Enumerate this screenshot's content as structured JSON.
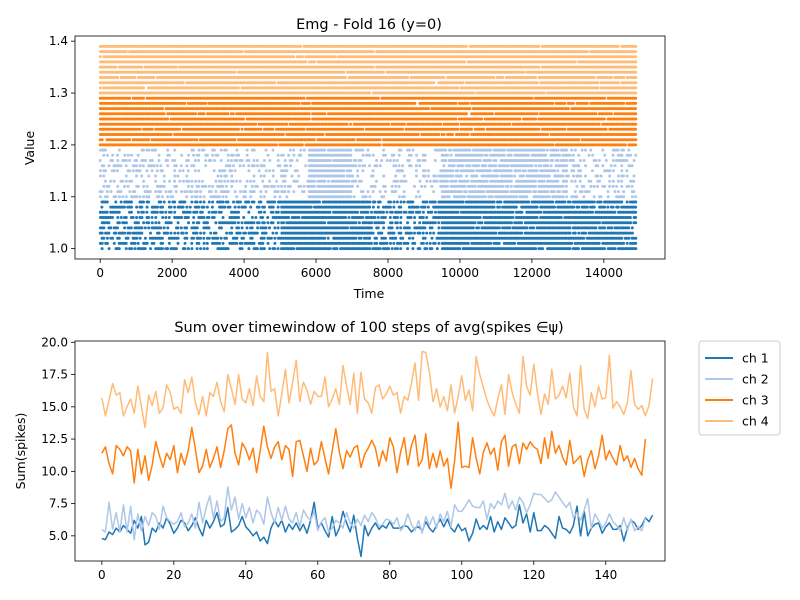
{
  "chart_data": [
    {
      "type": "scatter",
      "title": "Emg - Fold 16 (y=0)",
      "xlabel": "Time",
      "ylabel": "Value",
      "xlim": [
        -700,
        15700
      ],
      "ylim": [
        0.98,
        1.41
      ],
      "x_ticks": [
        0,
        2000,
        4000,
        6000,
        8000,
        10000,
        12000,
        14000
      ],
      "x_tick_labels": [
        "0",
        "2000",
        "4000",
        "6000",
        "8000",
        "10000",
        "12000",
        "14000"
      ],
      "y_ticks": [
        1.0,
        1.1,
        1.2,
        1.3,
        1.4
      ],
      "y_tick_labels": [
        "1.0",
        "1.1",
        "1.2",
        "1.3",
        "1.4"
      ],
      "x_range": [
        0,
        14900
      ],
      "bands": [
        {
          "color": "#1f77b4",
          "y_values": [
            1.0,
            1.01,
            1.02,
            1.03,
            1.04,
            1.05,
            1.06,
            1.07,
            1.08,
            1.09
          ],
          "density_segments": [
            [
              0,
              5000,
              0.55
            ],
            [
              5000,
              7500,
              0.95
            ],
            [
              7500,
              9500,
              0.6
            ],
            [
              9500,
              13000,
              0.95
            ],
            [
              13000,
              15000,
              0.9
            ]
          ]
        },
        {
          "color": "#aec7e8",
          "y_values": [
            1.1,
            1.11,
            1.12,
            1.13,
            1.14,
            1.15,
            1.16,
            1.17,
            1.18,
            1.19
          ],
          "density_segments": [
            [
              0,
              5000,
              0.35
            ],
            [
              5000,
              5800,
              0.3
            ],
            [
              5800,
              7000,
              0.95
            ],
            [
              7000,
              9500,
              0.3
            ],
            [
              9500,
              13000,
              0.85
            ],
            [
              13000,
              15000,
              0.4
            ]
          ]
        },
        {
          "color": "#ff7f0e",
          "y_values": [
            1.2,
            1.21,
            1.22,
            1.23,
            1.24,
            1.25,
            1.26,
            1.27,
            1.28,
            1.29
          ],
          "density_segments": [
            [
              0,
              15000,
              0.97
            ]
          ]
        },
        {
          "color": "#ffbb78",
          "y_values": [
            1.3,
            1.31,
            1.32,
            1.33,
            1.34,
            1.35,
            1.36,
            1.37,
            1.38,
            1.39
          ],
          "density_segments": [
            [
              0,
              15000,
              0.98
            ]
          ]
        }
      ]
    },
    {
      "type": "line",
      "title": "Sum over timewindow of 100 steps of avg(spikes $\\in\\psi$)",
      "title_display": "Sum over timewindow of 100 steps of avg(spikes ∈ψ)",
      "xlabel": "",
      "ylabel": "Sum(spikes)",
      "xlim": [
        -7.45,
        156.45
      ],
      "ylim": [
        3.05,
        20.1
      ],
      "x_ticks": [
        0,
        20,
        40,
        60,
        80,
        100,
        120,
        140
      ],
      "x_tick_labels": [
        "0",
        "20",
        "40",
        "60",
        "80",
        "100",
        "120",
        "140"
      ],
      "y_ticks": [
        5.0,
        7.5,
        10.0,
        12.5,
        15.0,
        17.5,
        20.0
      ],
      "y_tick_labels": [
        "5.0",
        "7.5",
        "10.0",
        "12.5",
        "15.0",
        "17.5",
        "20.0"
      ],
      "legend_position": "outside-right-top",
      "series": [
        {
          "name": "ch 1",
          "color": "#1f77b4",
          "values": [
            4.8,
            4.7,
            5.3,
            5.1,
            5.6,
            5.3,
            5.8,
            5.5,
            5.2,
            6.2,
            5.6,
            6.5,
            4.3,
            4.5,
            5.6,
            5.3,
            6.0,
            5.6,
            6.4,
            5.9,
            5.2,
            5.6,
            6.2,
            6.0,
            5.4,
            5.8,
            6.4,
            5.6,
            5.0,
            6.2,
            5.6,
            6.1,
            6.8,
            5.7,
            5.9,
            7.2,
            5.3,
            5.5,
            5.8,
            6.5,
            5.7,
            5.4,
            5.0,
            5.3,
            4.6,
            4.9,
            4.4,
            5.6,
            6.2,
            5.7,
            6.2,
            5.3,
            5.9,
            5.5,
            6.0,
            5.4,
            5.9,
            5.2,
            6.2,
            7.6,
            5.6,
            6.0,
            5.4,
            4.9,
            6.5,
            5.0,
            5.6,
            6.9,
            6.0,
            5.3,
            6.6,
            4.8,
            3.4,
            5.8,
            5.0,
            5.6,
            6.0,
            5.5,
            5.8,
            5.6,
            6.1,
            5.6,
            5.6,
            5.6,
            5.8,
            5.7,
            5.3,
            5.6,
            5.7,
            5.4,
            6.1,
            5.6,
            5.3,
            5.8,
            6.3,
            5.7,
            6.3,
            5.6,
            5.3,
            5.9,
            5.4,
            5.6,
            4.6,
            5.2,
            6.3,
            5.5,
            5.8,
            5.5,
            6.5,
            5.3,
            6.1,
            5.5,
            6.4,
            6.0,
            5.6,
            5.8,
            7.4,
            6.0,
            6.7,
            5.3,
            6.8,
            5.4,
            5.4,
            5.8,
            5.6,
            5.2,
            4.8,
            6.5,
            5.6,
            5.5,
            5.2,
            5.8,
            7.3,
            5.0,
            6.9,
            5.0,
            5.6,
            5.9,
            6.0,
            5.2,
            5.7,
            6.0,
            5.5,
            5.5,
            5.8,
            4.6,
            5.6,
            6.2,
            6.0,
            5.5,
            5.8,
            6.4,
            6.1,
            6.6
          ]
        },
        {
          "name": "ch 2",
          "color": "#aec7e8",
          "values": [
            5.5,
            5.3,
            7.6,
            5.5,
            6.8,
            5.3,
            7.4,
            5.3,
            7.3,
            4.7,
            6.7,
            5.4,
            6.5,
            5.8,
            6.8,
            6.5,
            5.5,
            7.3,
            6.4,
            6.1,
            5.9,
            6.1,
            6.8,
            5.7,
            6.0,
            6.7,
            5.6,
            7.6,
            6.0,
            7.2,
            8.1,
            6.4,
            7.7,
            6.1,
            6.4,
            8.8,
            7.0,
            8.0,
            6.3,
            7.5,
            6.4,
            7.2,
            6.0,
            7.0,
            6.7,
            5.9,
            8.0,
            6.8,
            6.0,
            7.2,
            6.2,
            7.3,
            6.3,
            6.0,
            6.8,
            5.7,
            7.0,
            6.5,
            6.2,
            6.9,
            5.4,
            6.1,
            6.4,
            5.3,
            5.6,
            6.2,
            6.0,
            5.6,
            6.8,
            6.0,
            5.6,
            6.3,
            5.8,
            6.6,
            6.1,
            6.8,
            6.4,
            5.7,
            5.9,
            6.3,
            6.2,
            5.9,
            6.4,
            5.4,
            5.8,
            6.7,
            5.9,
            5.4,
            6.2,
            5.2,
            6.5,
            5.8,
            6.5,
            5.6,
            6.7,
            6.1,
            6.9,
            5.7,
            7.4,
            6.9,
            6.9,
            7.3,
            7.8,
            7.3,
            7.2,
            7.2,
            7.7,
            6.3,
            7.5,
            7.1,
            7.7,
            7.4,
            8.3,
            7.1,
            7.7,
            7.0,
            8.0,
            7.6,
            6.8,
            7.4,
            8.3,
            8.2,
            8.2,
            7.9,
            7.6,
            7.8,
            8.4,
            8.0,
            7.6,
            7.2,
            7.6,
            6.4,
            6.8,
            6.2,
            7.0,
            7.9,
            5.6,
            6.7,
            6.2,
            5.6,
            6.0,
            6.7,
            6.1,
            5.8,
            5.4,
            6.4,
            5.4,
            6.3,
            5.4,
            5.7,
            5.4,
            6.4
          ]
        },
        {
          "name": "ch 3",
          "color": "#ff7f0e",
          "values": [
            11.4,
            11.9,
            10.6,
            9.8,
            12.0,
            11.7,
            11.2,
            11.9,
            11.6,
            9.1,
            11.7,
            9.8,
            11.2,
            9.3,
            10.5,
            12.3,
            11.2,
            10.3,
            11.4,
            10.9,
            12.0,
            9.9,
            11.4,
            10.5,
            11.6,
            13.4,
            11.7,
            9.9,
            10.4,
            11.7,
            10.3,
            11.0,
            11.9,
            10.3,
            11.6,
            13.3,
            13.6,
            11.4,
            10.5,
            12.2,
            11.7,
            10.9,
            11.8,
            9.9,
            11.6,
            13.5,
            11.9,
            11.0,
            11.9,
            12.3,
            10.9,
            12.0,
            11.7,
            9.6,
            12.3,
            12.4,
            11.2,
            10.0,
            11.8,
            10.5,
            10.8,
            12.3,
            11.0,
            9.8,
            11.6,
            13.3,
            11.5,
            10.2,
            11.6,
            11.1,
            11.8,
            12.0,
            10.3,
            11.3,
            11.8,
            12.4,
            11.8,
            10.4,
            11.6,
            10.8,
            12.6,
            11.9,
            9.9,
            11.5,
            12.6,
            10.5,
            12.0,
            12.8,
            10.4,
            10.9,
            12.9,
            10.2,
            11.4,
            10.3,
            11.6,
            10.4,
            11.0,
            8.7,
            10.8,
            13.8,
            10.3,
            10.4,
            10.3,
            12.6,
            11.0,
            9.8,
            11.5,
            12.2,
            11.3,
            11.8,
            10.1,
            12.3,
            12.8,
            10.4,
            11.9,
            12.1,
            10.6,
            12.2,
            11.7,
            12.3,
            11.9,
            11.7,
            10.6,
            12.6,
            11.0,
            13.1,
            11.4,
            12.0,
            11.1,
            10.5,
            12.4,
            10.6,
            10.9,
            11.2,
            9.6,
            10.9,
            11.6,
            10.2,
            11.2,
            12.8,
            10.9,
            11.6,
            11.0,
            10.5,
            12.0,
            10.8,
            11.2,
            10.3,
            11.0,
            10.2,
            9.7,
            12.5
          ]
        },
        {
          "name": "ch 4",
          "color": "#ffbb78",
          "values": [
            15.7,
            14.3,
            15.5,
            16.8,
            15.9,
            16.1,
            14.3,
            15.0,
            15.6,
            14.5,
            16.6,
            15.0,
            13.4,
            15.9,
            15.1,
            16.2,
            14.5,
            14.9,
            16.7,
            16.1,
            14.8,
            15.0,
            14.5,
            17.1,
            16.1,
            17.3,
            15.3,
            14.4,
            15.8,
            14.3,
            16.1,
            15.8,
            16.9,
            15.4,
            14.6,
            17.5,
            16.4,
            15.2,
            17.5,
            15.6,
            15.3,
            16.4,
            15.1,
            17.4,
            15.8,
            15.4,
            19.2,
            16.2,
            16.4,
            14.3,
            16.0,
            17.9,
            15.3,
            16.9,
            18.6,
            15.4,
            16.9,
            16.3,
            15.2,
            16.2,
            15.8,
            15.8,
            17.3,
            15.0,
            15.6,
            16.4,
            15.2,
            18.2,
            16.6,
            15.2,
            17.6,
            14.5,
            17.7,
            15.6,
            15.3,
            14.5,
            16.5,
            16.7,
            15.6,
            16.0,
            16.6,
            15.9,
            16.1,
            14.5,
            15.8,
            15.5,
            16.8,
            18.4,
            15.5,
            19.3,
            19.2,
            17.7,
            15.4,
            16.4,
            15.0,
            15.8,
            14.7,
            16.7,
            14.5,
            15.8,
            17.4,
            15.5,
            16.3,
            14.7,
            18.9,
            17.5,
            16.5,
            15.5,
            14.8,
            14.3,
            15.6,
            16.7,
            14.4,
            17.5,
            16.1,
            15.2,
            14.5,
            18.9,
            16.6,
            15.9,
            18.3,
            16.1,
            14.4,
            16.0,
            15.2,
            17.9,
            15.6,
            15.9,
            16.6,
            15.7,
            17.6,
            15.0,
            14.3,
            18.2,
            14.8,
            14.1,
            16.1,
            15.0,
            16.6,
            15.6,
            15.7,
            19.0,
            14.9,
            15.4,
            15.0,
            14.4,
            15.3,
            17.8,
            15.2,
            14.8,
            15.1,
            14.3,
            15.1,
            17.2
          ]
        }
      ]
    }
  ]
}
